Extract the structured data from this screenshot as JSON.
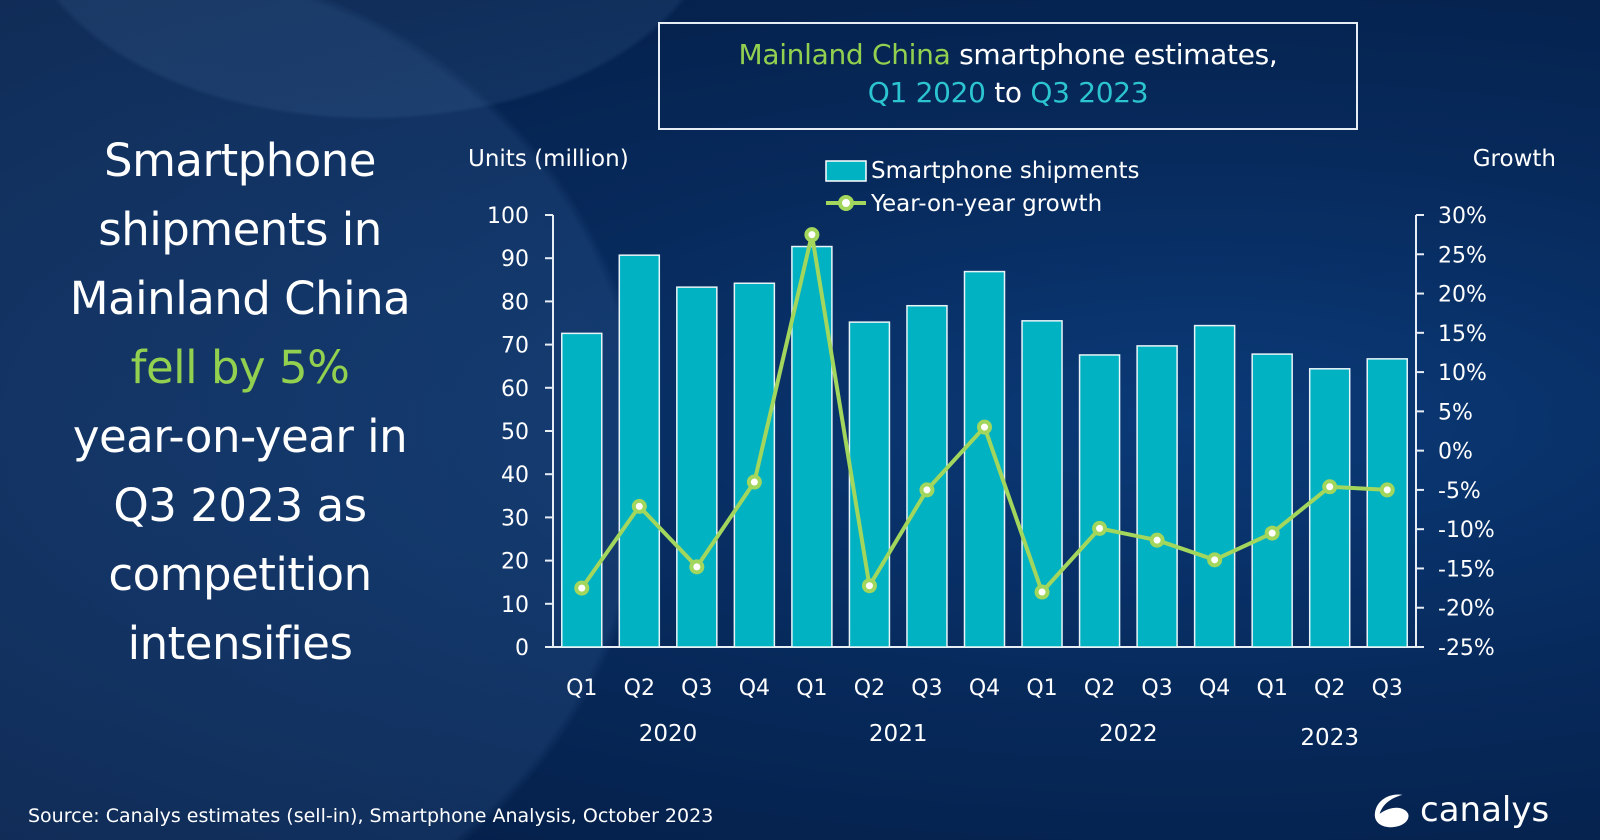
{
  "headline": {
    "lines": [
      "Smartphone",
      "shipments in",
      "Mainland China"
    ],
    "highlight": "fell by 5%",
    "lines_after": [
      "year-on-year in",
      "Q3 2023 as",
      "competition",
      "intensifies"
    ]
  },
  "title": {
    "part1": "Mainland China",
    "part2": " smartphone estimates,",
    "part3": "Q1 2020",
    "part4": " to ",
    "part5": "Q3 2023"
  },
  "source": "Source:  Canalys estimates (sell-in), Smartphone Analysis, October 2023",
  "logo": {
    "text": "canalys"
  },
  "colors": {
    "bar": "#00b2c2",
    "line": "#a3d65c",
    "title_green": "#92d050",
    "title_teal": "#2bc4d0",
    "background": "#072a5c"
  },
  "chart_data": {
    "type": "bar+line",
    "categories": [
      "Q1",
      "Q2",
      "Q3",
      "Q4",
      "Q1",
      "Q2",
      "Q3",
      "Q4",
      "Q1",
      "Q2",
      "Q3",
      "Q4",
      "Q1",
      "Q2",
      "Q3"
    ],
    "years": [
      {
        "label": "2020",
        "from": 0,
        "to": 3
      },
      {
        "label": "2021",
        "from": 4,
        "to": 7
      },
      {
        "label": "2022",
        "from": 8,
        "to": 11
      },
      {
        "label": "2023",
        "from": 12,
        "to": 14
      }
    ],
    "ylabel": "Units (million)",
    "y2label": "Growth",
    "ylim": [
      0,
      100
    ],
    "yticks": [
      0,
      10,
      20,
      30,
      40,
      50,
      60,
      70,
      80,
      90,
      100
    ],
    "y2lim": [
      -25,
      30
    ],
    "y2ticks": [
      "-25%",
      "-20%",
      "-15%",
      "-10%",
      "-5%",
      "0%",
      "5%",
      "10%",
      "15%",
      "20%",
      "25%",
      "30%"
    ],
    "legend_position": "top-center",
    "grid": false,
    "series": [
      {
        "name": "Smartphone shipments",
        "type": "bar",
        "axis": "left",
        "values": [
          72.6,
          90.7,
          83.3,
          84.2,
          92.7,
          75.2,
          79.0,
          86.9,
          75.5,
          67.6,
          69.7,
          74.4,
          67.8,
          64.4,
          66.7
        ]
      },
      {
        "name": "Year-on-year growth",
        "type": "line",
        "axis": "right",
        "unit": "%",
        "values": [
          -17.5,
          -7.1,
          -14.8,
          -4.0,
          27.5,
          -17.2,
          -5.0,
          3.0,
          -18.0,
          -9.9,
          -11.4,
          -13.9,
          -10.5,
          -4.6,
          -5.0
        ]
      }
    ]
  }
}
